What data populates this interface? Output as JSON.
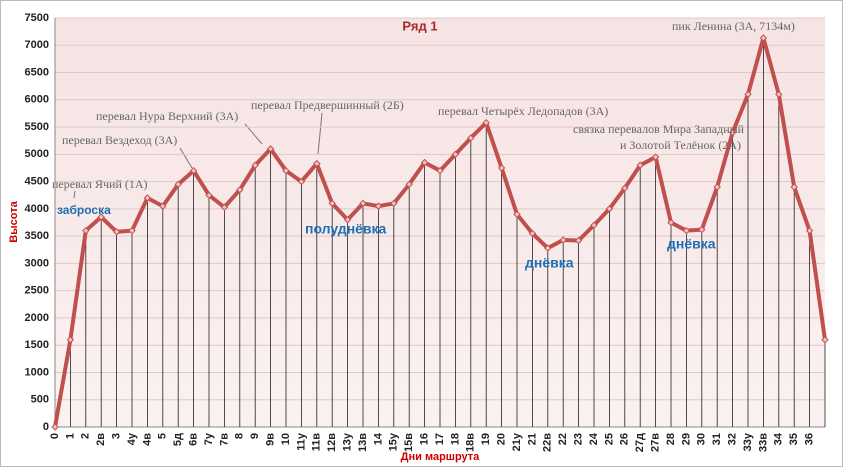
{
  "chart_data": {
    "type": "line",
    "title": "Ряд 1",
    "y_label": "Высота",
    "x_label": "Дни маршрута",
    "categories": [
      "0",
      "1",
      "2",
      "2в",
      "3",
      "4у",
      "4в",
      "5",
      "5д",
      "6в",
      "7у",
      "7в",
      "8",
      "9",
      "9в",
      "10",
      "11у",
      "11в",
      "12в",
      "13у",
      "13в",
      "14",
      "15у",
      "15в",
      "16",
      "17",
      "18",
      "18в",
      "19",
      "20",
      "21у",
      "21",
      "22в",
      "22",
      "23",
      "24",
      "25",
      "26",
      "27д",
      "27в",
      "28",
      "29",
      "30",
      "31",
      "32",
      "33у",
      "33в",
      "34",
      "35",
      "36",
      null
    ],
    "series": [
      {
        "name": "Ряд 1",
        "color": "#c0504d",
        "values": [
          0,
          1600,
          3600,
          3850,
          3580,
          3600,
          4200,
          4050,
          4450,
          4700,
          4250,
          4030,
          4350,
          4800,
          5100,
          4700,
          4500,
          4830,
          4100,
          3800,
          4100,
          4050,
          4100,
          4450,
          4850,
          4700,
          5000,
          5300,
          5580,
          4750,
          3900,
          3550,
          3280,
          3430,
          3420,
          3700,
          4000,
          4380,
          4800,
          4950,
          3750,
          3600,
          3620,
          4400,
          5400,
          6100,
          7134,
          6100,
          4400,
          3600,
          1600
        ]
      }
    ],
    "ylim": [
      0,
      7500
    ],
    "yticks": [
      0,
      500,
      1000,
      1500,
      2000,
      2500,
      3000,
      3500,
      4000,
      4500,
      5000,
      5500,
      6000,
      6500,
      7000,
      7500
    ],
    "grid": true,
    "annotations": [
      "перевал Ячий (1А)",
      "перевал Вездеход (3А)",
      "перевал Нура Верхний (3А)",
      "перевал Предвершинный (2Б)",
      "перевал Четырёх Ледопадов (3А)",
      [
        "связка перевалов Мира Западный",
        "и Золотой Телёнок (2А)"
      ],
      "пик Ленина (3А, 7134м)"
    ],
    "notes": [
      "заброска",
      "полуднёвка",
      "днёвка",
      "днёвка"
    ]
  }
}
